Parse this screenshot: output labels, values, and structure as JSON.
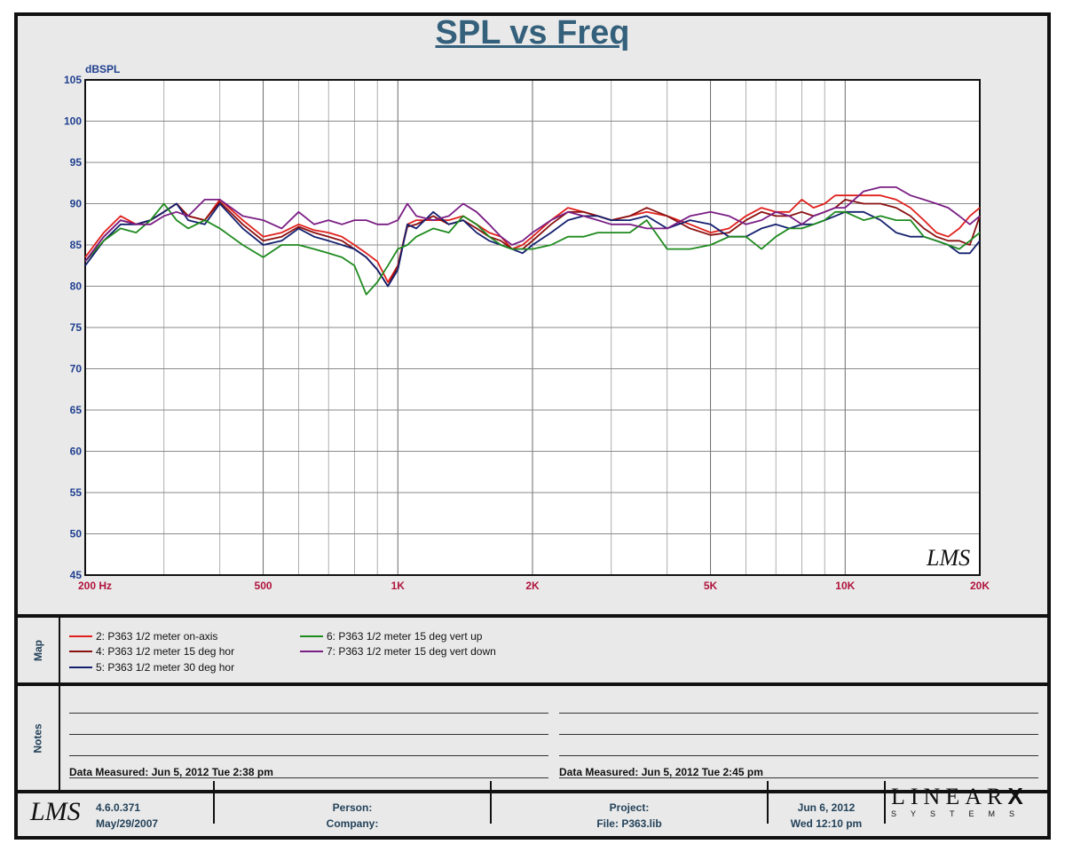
{
  "title": "SPL vs Freq",
  "chart_data": {
    "type": "line",
    "title": "SPL vs Freq",
    "ylabel": "dBSPL",
    "x_scale": "log",
    "xlim": [
      200,
      20000
    ],
    "ylim": [
      45,
      105
    ],
    "grid": true,
    "x_tick_labels": [
      {
        "value": 200,
        "label": "200  Hz"
      },
      {
        "value": 500,
        "label": "500"
      },
      {
        "value": 1000,
        "label": "1K"
      },
      {
        "value": 2000,
        "label": "2K"
      },
      {
        "value": 5000,
        "label": "5K"
      },
      {
        "value": 10000,
        "label": "10K"
      },
      {
        "value": 20000,
        "label": "20K"
      }
    ],
    "y_ticks": [
      105,
      100,
      95,
      90,
      85,
      80,
      75,
      70,
      65,
      60,
      55,
      50,
      45
    ],
    "watermark": "LMS",
    "series": [
      {
        "name": "2: P363 1/2 meter on-axis",
        "color": "#e0201c",
        "x": [
          200,
          220,
          240,
          260,
          280,
          300,
          320,
          340,
          370,
          400,
          450,
          500,
          550,
          600,
          650,
          700,
          750,
          800,
          850,
          900,
          950,
          1000,
          1050,
          1100,
          1200,
          1300,
          1400,
          1500,
          1600,
          1700,
          1800,
          1900,
          2000,
          2200,
          2400,
          2600,
          2800,
          3000,
          3300,
          3600,
          4000,
          4500,
          5000,
          5500,
          6000,
          6500,
          7000,
          7500,
          8000,
          8500,
          9000,
          9500,
          10000,
          11000,
          12000,
          13000,
          14000,
          15000,
          16000,
          17000,
          18000,
          19000,
          20000
        ],
        "y": [
          83.5,
          86.5,
          88.5,
          87.5,
          88.0,
          89.0,
          90.0,
          88.5,
          88.0,
          90.5,
          88.0,
          86.0,
          86.5,
          87.5,
          86.8,
          86.5,
          86.0,
          85.0,
          84.0,
          83.0,
          80.5,
          82.5,
          87.5,
          88.0,
          88.0,
          88.0,
          88.5,
          87.5,
          86.5,
          86.0,
          84.5,
          85.0,
          86.0,
          88.0,
          89.5,
          89.0,
          88.5,
          88.0,
          88.5,
          89.0,
          88.5,
          87.5,
          86.5,
          87.0,
          88.5,
          89.5,
          89.0,
          89.0,
          90.5,
          89.5,
          90.0,
          91.0,
          91.0,
          91.0,
          91.0,
          90.5,
          89.5,
          88.0,
          86.5,
          86.0,
          87.0,
          88.5,
          89.5
        ]
      },
      {
        "name": "4: P363 1/2 meter 15 deg hor",
        "color": "#8a1010",
        "x": [
          200,
          220,
          240,
          260,
          280,
          300,
          320,
          340,
          370,
          400,
          450,
          500,
          550,
          600,
          650,
          700,
          750,
          800,
          850,
          900,
          950,
          1000,
          1050,
          1100,
          1200,
          1300,
          1400,
          1500,
          1600,
          1700,
          1800,
          1900,
          2000,
          2200,
          2400,
          2600,
          2800,
          3000,
          3300,
          3600,
          4000,
          4500,
          5000,
          5500,
          6000,
          6500,
          7000,
          7500,
          8000,
          8500,
          9000,
          9500,
          10000,
          11000,
          12000,
          13000,
          14000,
          15000,
          16000,
          17000,
          18000,
          19000,
          20000
        ],
        "y": [
          83.0,
          86.0,
          88.0,
          87.5,
          88.0,
          89.0,
          90.0,
          88.5,
          88.0,
          90.2,
          87.5,
          85.5,
          86.0,
          87.2,
          86.5,
          86.0,
          85.5,
          84.5,
          83.5,
          82.0,
          80.0,
          82.5,
          87.2,
          87.5,
          88.5,
          87.5,
          88.0,
          87.0,
          86.0,
          85.5,
          84.5,
          84.5,
          85.5,
          87.5,
          89.0,
          89.0,
          88.5,
          88.0,
          88.5,
          89.5,
          88.5,
          87.0,
          86.2,
          86.5,
          88.0,
          89.0,
          88.5,
          88.5,
          89.0,
          88.5,
          89.0,
          89.5,
          90.5,
          90.0,
          90.0,
          89.5,
          88.5,
          87.0,
          86.0,
          85.5,
          85.5,
          85.0,
          88.5
        ]
      },
      {
        "name": "5: P363 1/2 meter 30 deg hor",
        "color": "#14206e",
        "x": [
          200,
          220,
          240,
          260,
          280,
          300,
          320,
          340,
          370,
          400,
          450,
          500,
          550,
          600,
          650,
          700,
          750,
          800,
          850,
          900,
          950,
          1000,
          1050,
          1100,
          1200,
          1300,
          1400,
          1500,
          1600,
          1700,
          1800,
          1900,
          2000,
          2200,
          2400,
          2600,
          2800,
          3000,
          3300,
          3600,
          4000,
          4500,
          5000,
          5500,
          6000,
          6500,
          7000,
          7500,
          8000,
          8500,
          9000,
          9500,
          10000,
          11000,
          12000,
          13000,
          14000,
          15000,
          16000,
          17000,
          18000,
          19000,
          20000
        ],
        "y": [
          82.5,
          85.5,
          87.5,
          87.5,
          88.0,
          89.0,
          90.0,
          88.0,
          87.5,
          90.0,
          87.0,
          85.0,
          85.5,
          87.0,
          86.0,
          85.5,
          85.0,
          84.5,
          83.5,
          82.0,
          80.0,
          82.0,
          87.5,
          87.0,
          89.0,
          87.5,
          88.0,
          86.5,
          85.5,
          85.0,
          84.5,
          84.0,
          85.0,
          86.5,
          88.0,
          88.5,
          88.5,
          88.0,
          88.0,
          88.5,
          87.0,
          88.0,
          87.5,
          86.0,
          86.0,
          87.0,
          87.5,
          87.0,
          87.5,
          87.5,
          88.0,
          88.5,
          89.0,
          89.0,
          88.0,
          86.5,
          86.0,
          86.0,
          85.5,
          85.0,
          84.0,
          84.0,
          85.5
        ]
      },
      {
        "name": "6: P363 1/2 meter 15 deg vert up",
        "color": "#1e8a1e",
        "x": [
          200,
          220,
          240,
          260,
          280,
          300,
          320,
          340,
          370,
          400,
          450,
          500,
          550,
          600,
          650,
          700,
          750,
          800,
          850,
          900,
          950,
          1000,
          1050,
          1100,
          1200,
          1300,
          1400,
          1500,
          1600,
          1700,
          1800,
          1900,
          2000,
          2200,
          2400,
          2600,
          2800,
          3000,
          3300,
          3600,
          4000,
          4500,
          5000,
          5500,
          6000,
          6500,
          7000,
          7500,
          8000,
          8500,
          9000,
          9500,
          10000,
          11000,
          12000,
          13000,
          14000,
          15000,
          16000,
          17000,
          18000,
          19000,
          20000
        ],
        "y": [
          83.0,
          85.5,
          87.0,
          86.5,
          88.0,
          90.0,
          88.0,
          87.0,
          88.0,
          87.0,
          85.0,
          83.5,
          85.0,
          85.0,
          84.5,
          84.0,
          83.5,
          82.5,
          79.0,
          80.5,
          82.5,
          84.5,
          85.0,
          86.0,
          87.0,
          86.5,
          88.5,
          87.5,
          86.0,
          85.0,
          84.5,
          84.5,
          84.5,
          85.0,
          86.0,
          86.0,
          86.5,
          86.5,
          86.5,
          88.0,
          84.5,
          84.5,
          85.0,
          86.0,
          86.0,
          84.5,
          86.0,
          87.0,
          87.0,
          87.5,
          88.0,
          89.0,
          89.0,
          88.0,
          88.5,
          88.0,
          88.0,
          86.0,
          85.5,
          85.0,
          84.5,
          85.5,
          86.5
        ]
      },
      {
        "name": "7: P363 1/2 meter 15 deg vert down",
        "color": "#7a1e84",
        "x": [
          200,
          220,
          240,
          260,
          280,
          300,
          320,
          340,
          370,
          400,
          450,
          500,
          550,
          600,
          650,
          700,
          750,
          800,
          850,
          900,
          950,
          1000,
          1050,
          1100,
          1200,
          1300,
          1400,
          1500,
          1600,
          1700,
          1800,
          1900,
          2000,
          2200,
          2400,
          2600,
          2800,
          3000,
          3300,
          3600,
          4000,
          4500,
          5000,
          5500,
          6000,
          6500,
          7000,
          7500,
          8000,
          8500,
          9000,
          9500,
          10000,
          11000,
          12000,
          13000,
          14000,
          15000,
          16000,
          17000,
          18000,
          19000,
          20000
        ],
        "y": [
          83.0,
          86.0,
          88.0,
          87.5,
          87.5,
          88.5,
          89.0,
          88.5,
          90.5,
          90.5,
          88.5,
          88.0,
          87.0,
          89.0,
          87.5,
          88.0,
          87.5,
          88.0,
          88.0,
          87.5,
          87.5,
          88.0,
          90.0,
          88.5,
          88.0,
          88.5,
          90.0,
          89.0,
          87.5,
          86.0,
          85.0,
          85.5,
          86.5,
          88.0,
          89.0,
          88.5,
          88.0,
          87.5,
          87.5,
          87.0,
          87.0,
          88.5,
          89.0,
          88.5,
          87.5,
          88.0,
          89.0,
          88.5,
          87.5,
          88.5,
          89.0,
          89.5,
          89.5,
          91.5,
          92.0,
          92.0,
          91.0,
          90.5,
          90.0,
          89.5,
          88.5,
          87.5,
          88.5
        ]
      }
    ]
  },
  "map": {
    "label": "Map",
    "legend": [
      "2: P363 1/2 meter on-axis",
      "4: P363 1/2 meter 15 deg hor",
      "5: P363 1/2 meter 30 deg hor",
      "6: P363 1/2 meter 15 deg vert up",
      "7: P363 1/2 meter 15 deg vert down"
    ]
  },
  "notes": {
    "label": "Notes",
    "left_measured": "Data Measured: Jun  5, 2012  Tue  2:38 pm",
    "right_measured": "Data Measured: Jun  5, 2012  Tue  2:45 pm"
  },
  "footer": {
    "logo": "LMS",
    "version": "4.6.0.371",
    "version_date": "May/29/2007",
    "person": "Person:",
    "company": "Company:",
    "project": "Project:",
    "file": "File: P363.lib",
    "date": "Jun  6, 2012",
    "time": "Wed 12:10 pm",
    "brand": "LINEAR",
    "brand_x": "X",
    "brand_sub": "SYSTEMS"
  },
  "colors": {
    "axis_text": "#1f3f8f",
    "title": "#34607c",
    "tick_x": "#b0143c"
  }
}
